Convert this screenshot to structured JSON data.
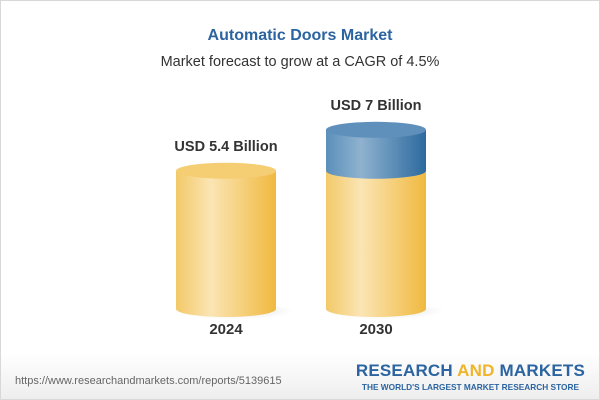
{
  "title": "Automatic Doors Market",
  "subtitle": "Market forecast to grow at a CAGR of 4.5%",
  "chart_data": {
    "type": "bar",
    "style": "3d-cylinder",
    "categories": [
      "2024",
      "2030"
    ],
    "values": [
      5.4,
      7
    ],
    "value_labels": [
      "USD 5.4 Billion",
      "USD 7 Billion"
    ],
    "unit": "USD Billion",
    "colors": {
      "base": "#f3c55f",
      "growth": "#3f7db0"
    }
  },
  "footer": {
    "url": "https://www.researchandmarkets.com/reports/5139615",
    "logo_part1": "RESEARCH ",
    "logo_part2": "AND",
    "logo_part3": " MARKETS",
    "tagline": "THE WORLD'S LARGEST MARKET RESEARCH STORE"
  }
}
